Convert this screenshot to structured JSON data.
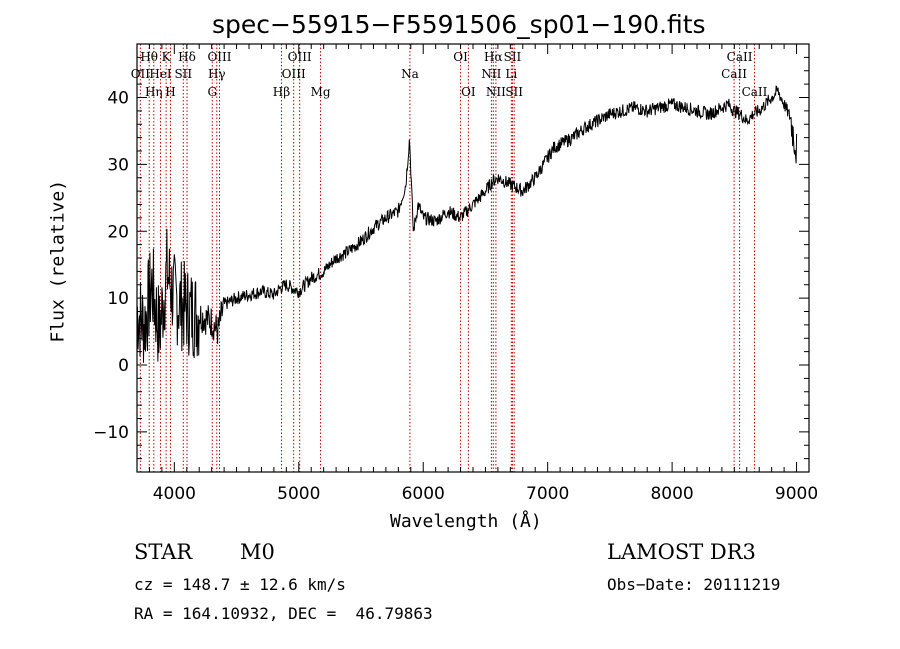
{
  "chart_data": {
    "type": "line",
    "title": "spec−55915−F5591506_sp01−190.fits",
    "xlabel": "Wavelength (Å)",
    "ylabel": "Flux (relative)",
    "xlim": [
      3700,
      9100
    ],
    "ylim": [
      -16,
      48
    ],
    "x_ticks": [
      4000,
      5000,
      6000,
      7000,
      8000,
      9000
    ],
    "y_ticks": [
      -10,
      0,
      10,
      20,
      30,
      40
    ],
    "x_tick_labels": [
      "4000",
      "5000",
      "6000",
      "7000",
      "8000",
      "9000"
    ],
    "y_tick_labels": [
      "−10",
      "0",
      "10",
      "20",
      "30",
      "40"
    ],
    "grid": false,
    "series": [
      {
        "name": "flux",
        "x": [
          3700,
          3760,
          3820,
          3880,
          3940,
          4000,
          4060,
          4120,
          4200,
          4300,
          4350,
          4400,
          4500,
          4600,
          4700,
          4800,
          4850,
          4900,
          5000,
          5100,
          5200,
          5300,
          5400,
          5500,
          5600,
          5700,
          5800,
          5860,
          5890,
          5920,
          5960,
          6000,
          6100,
          6200,
          6300,
          6400,
          6450,
          6500,
          6560,
          6600,
          6700,
          6800,
          6900,
          7000,
          7050,
          7100,
          7200,
          7300,
          7400,
          7500,
          7600,
          7700,
          7800,
          7900,
          8000,
          8100,
          8200,
          8300,
          8400,
          8450,
          8500,
          8550,
          8600,
          8650,
          8700,
          8750,
          8800,
          8850,
          8900,
          8950,
          9000
        ],
        "values": [
          8,
          6,
          12,
          5,
          14,
          10,
          9,
          8,
          7.5,
          6.5,
          5,
          9,
          10,
          10.5,
          11,
          10.5,
          11.5,
          12,
          11,
          13,
          14,
          16,
          17,
          18.5,
          20.5,
          22,
          23,
          27,
          34,
          20,
          24,
          22,
          21.5,
          23,
          22,
          24,
          25,
          26,
          27.5,
          28,
          27,
          26,
          28,
          31,
          32.5,
          33,
          34,
          35.5,
          36.5,
          37.5,
          38,
          38.5,
          38,
          38.5,
          39,
          38.5,
          38,
          37.5,
          38.5,
          39,
          38,
          37.5,
          36.5,
          37.5,
          38,
          39,
          40,
          41,
          39,
          37,
          32
        ]
      }
    ],
    "spectral_lines": [
      {
        "name": "OII",
        "wavelength": 3727,
        "row": 1
      },
      {
        "name": "Hθ",
        "wavelength": 3798,
        "row": 0
      },
      {
        "name": "Hη",
        "wavelength": 3835,
        "row": 2
      },
      {
        "name": "HeI",
        "wavelength": 3889,
        "row": 1
      },
      {
        "name": "K",
        "wavelength": 3934,
        "row": 0
      },
      {
        "name": "H",
        "wavelength": 3969,
        "row": 2
      },
      {
        "name": "SII",
        "wavelength": 4072,
        "row": 1
      },
      {
        "name": "Hδ",
        "wavelength": 4102,
        "row": 0
      },
      {
        "name": "G",
        "wavelength": 4305,
        "row": 2
      },
      {
        "name": "Hγ",
        "wavelength": 4341,
        "row": 1
      },
      {
        "name": "OIII",
        "wavelength": 4363,
        "row": 0
      },
      {
        "name": "Hβ",
        "wavelength": 4861,
        "row": 2
      },
      {
        "name": "OIII",
        "wavelength": 4959,
        "row": 1
      },
      {
        "name": "OIII",
        "wavelength": 5007,
        "row": 0
      },
      {
        "name": "Mg",
        "wavelength": 5175,
        "row": 2
      },
      {
        "name": "Na",
        "wavelength": 5893,
        "row": 1
      },
      {
        "name": "OI",
        "wavelength": 6300,
        "row": 0
      },
      {
        "name": "OI",
        "wavelength": 6363,
        "row": 2
      },
      {
        "name": "NII",
        "wavelength": 6548,
        "row": 1
      },
      {
        "name": "Hα",
        "wavelength": 6563,
        "row": 0
      },
      {
        "name": "NII",
        "wavelength": 6584,
        "row": 2
      },
      {
        "name": "Li",
        "wavelength": 6708,
        "row": 1
      },
      {
        "name": "SII",
        "wavelength": 6717,
        "row": 0
      },
      {
        "name": "SII",
        "wavelength": 6731,
        "row": 2
      },
      {
        "name": "CaII",
        "wavelength": 8498,
        "row": 1
      },
      {
        "name": "CaII",
        "wavelength": 8542,
        "row": 0
      },
      {
        "name": "CaII",
        "wavelength": 8662,
        "row": 2
      }
    ]
  },
  "footer": {
    "object_class": "STAR",
    "subclass": "M0",
    "survey": "LAMOST DR3",
    "redshift": "cz = 148.7 ± 12.6 km/s",
    "obs_date": "Obs−Date: 20111219",
    "coords": "RA = 164.10932, DEC =  46.79863"
  },
  "colors": {
    "axes": "#000000",
    "flux": "#000000",
    "line_marker": "#cc0000"
  }
}
